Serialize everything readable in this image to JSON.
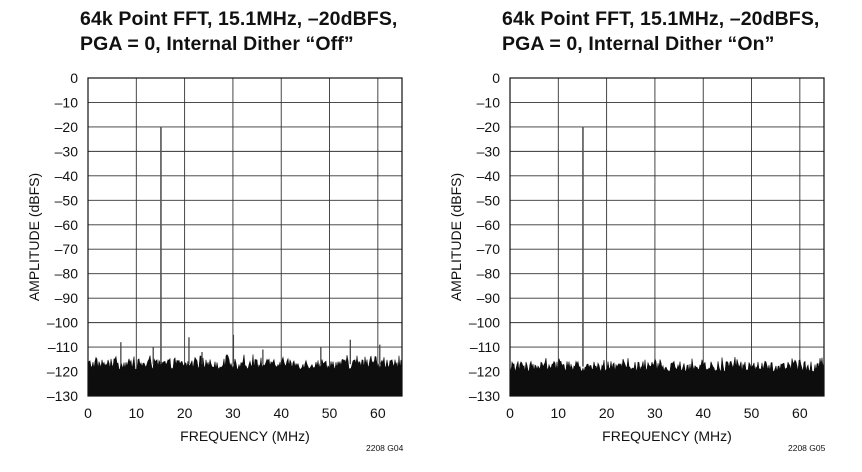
{
  "chart_data": [
    {
      "type": "line",
      "title": "64k Point FFT, 15.1MHz, –20dBFS,",
      "title_line2": "PGA = 0, Internal Dither “Off”",
      "xlabel": "FREQUENCY (MHz)",
      "ylabel": "AMPLITUDE (dBFS)",
      "xlim": [
        0,
        65
      ],
      "ylim": [
        -130,
        0
      ],
      "x_ticks": [
        "0",
        "10",
        "20",
        "30",
        "40",
        "50",
        "60"
      ],
      "y_ticks": [
        "0",
        "–10",
        "–20",
        "–30",
        "–40",
        "–50",
        "–60",
        "–70",
        "–80",
        "–90",
        "–100",
        "–110",
        "–120",
        "–130"
      ],
      "grid": true,
      "noise_floor": {
        "low": -130,
        "mean": -117,
        "high": -113
      },
      "series": [
        {
          "x": [
            15.1,
            6.8,
            13.5,
            20.9,
            23.6,
            30.1,
            36.2,
            48.2,
            54.3,
            60.4
          ],
          "y": [
            -20,
            -108,
            -110,
            -106,
            -112,
            -105,
            -111,
            -110,
            -107,
            -109
          ]
        }
      ],
      "footer_code": "2208 G04"
    },
    {
      "type": "line",
      "title": "64k Point FFT, 15.1MHz, –20dBFS,",
      "title_line2": "PGA = 0, Internal Dither “On”",
      "xlabel": "FREQUENCY (MHz)",
      "ylabel": "AMPLITUDE (dBFS)",
      "xlim": [
        0,
        65
      ],
      "ylim": [
        -130,
        0
      ],
      "x_ticks": [
        "0",
        "10",
        "20",
        "30",
        "40",
        "50",
        "60"
      ],
      "y_ticks": [
        "0",
        "–10",
        "–20",
        "–30",
        "–40",
        "–50",
        "–60",
        "–70",
        "–80",
        "–90",
        "–100",
        "–110",
        "–120",
        "–130"
      ],
      "grid": true,
      "noise_floor": {
        "low": -130,
        "mean": -118,
        "high": -114
      },
      "series": [
        {
          "x": [
            15.1
          ],
          "y": [
            -20
          ]
        }
      ],
      "footer_code": "2208 G05"
    }
  ]
}
